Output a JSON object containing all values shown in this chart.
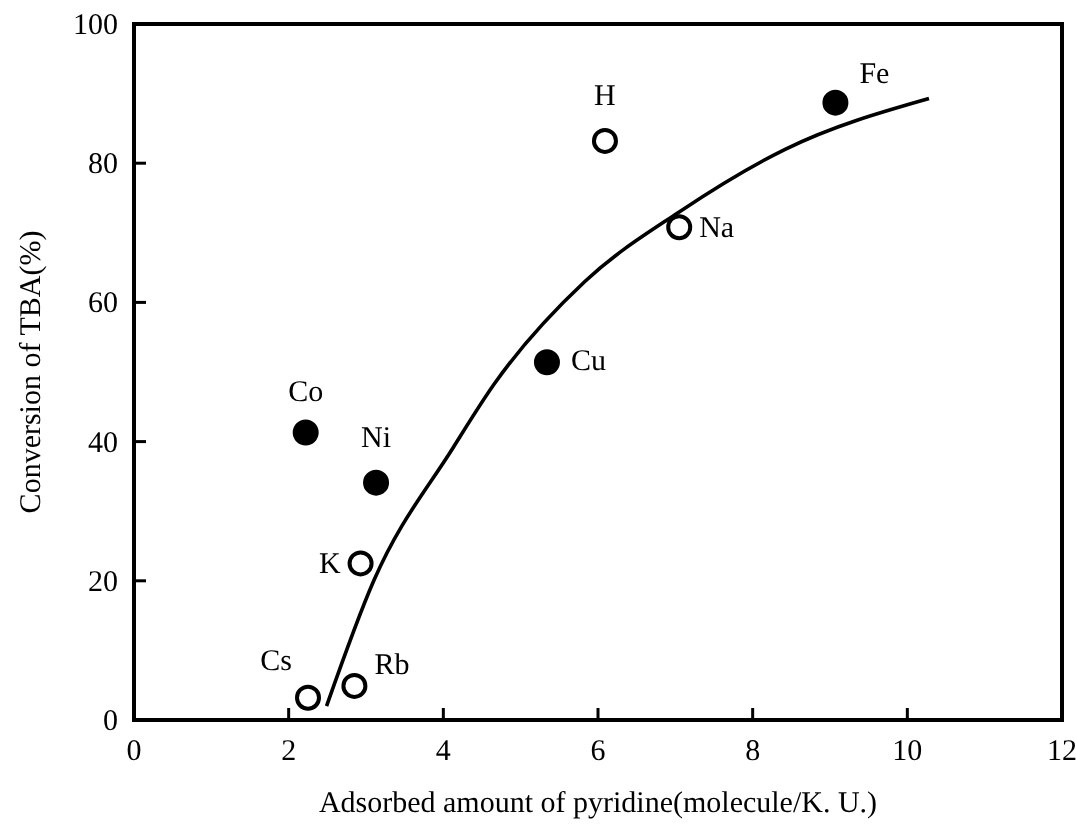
{
  "chart_data": {
    "type": "scatter",
    "xlabel": "Adsorbed amount of pyridine(molecule/K. U.)",
    "ylabel": "Conversion of TBA(%)",
    "xlim": [
      0,
      12
    ],
    "ylim": [
      0,
      100
    ],
    "xticks": [
      0,
      2,
      4,
      6,
      8,
      10,
      12
    ],
    "yticks": [
      0,
      20,
      40,
      60,
      80,
      100
    ],
    "grid": false,
    "series": [
      {
        "color": "#000000",
        "marker": "circle",
        "x": [
          9.07,
          5.34,
          2.22,
          3.13
        ],
        "values": [
          88.7,
          51.4,
          41.3,
          34.1
        ]
      },
      {
        "color": "#ffffff",
        "marker": "circle",
        "x": [
          6.09,
          7.05,
          2.93,
          2.25,
          2.85
        ],
        "values": [
          83.2,
          70.8,
          22.5,
          3.2,
          4.9
        ]
      },
      {
        "type": "line",
        "color": "#000000",
        "line_style": "solid",
        "x": [
          2.49,
          3.1,
          4.12,
          4.66,
          5.83,
          7.05,
          8.42,
          10.28
        ],
        "values": [
          2,
          20,
          39,
          48.3,
          63,
          73,
          82,
          89.3
        ]
      }
    ],
    "annotations": [
      {
        "text": "Fe",
        "x": 9.07,
        "y": 88.7
      },
      {
        "text": "Cu",
        "x": 5.34,
        "y": 51.4
      },
      {
        "text": "Co",
        "x": 2.22,
        "y": 41.3
      },
      {
        "text": "Ni",
        "x": 3.13,
        "y": 34.1
      },
      {
        "text": "H",
        "x": 6.09,
        "y": 83.2
      },
      {
        "text": "Na",
        "x": 7.05,
        "y": 70.8
      },
      {
        "text": "K",
        "x": 2.93,
        "y": 22.5
      },
      {
        "text": "Cs",
        "x": 2.25,
        "y": 3.2
      },
      {
        "text": "Rb",
        "x": 2.85,
        "y": 4.9
      }
    ]
  }
}
